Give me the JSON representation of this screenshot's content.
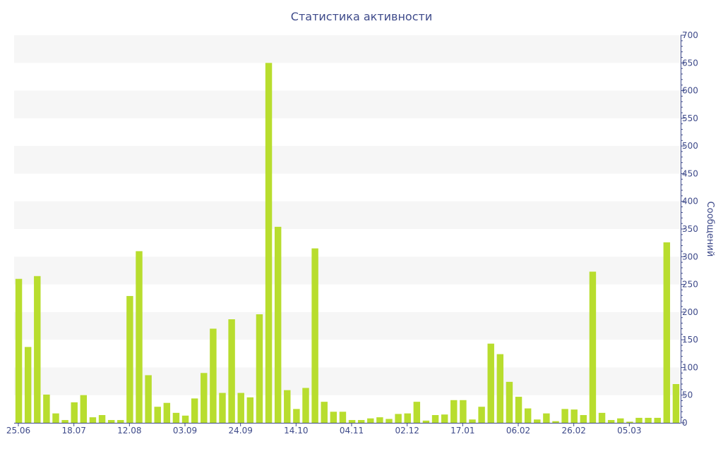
{
  "chart_data": {
    "type": "bar",
    "title": "Статистика активности",
    "ylabel": "Сообщений",
    "xlabel": "",
    "ylim": [
      0,
      700
    ],
    "y_ticks": [
      0,
      50,
      100,
      150,
      200,
      250,
      300,
      350,
      400,
      450,
      500,
      550,
      600,
      650,
      700
    ],
    "y_axis_side": "right",
    "x_tick_labels": [
      {
        "label": "25.06",
        "index": 0
      },
      {
        "label": "18.07",
        "index": 6
      },
      {
        "label": "12.08",
        "index": 12
      },
      {
        "label": "03.09",
        "index": 18
      },
      {
        "label": "24.09",
        "index": 24
      },
      {
        "label": "14.10",
        "index": 30
      },
      {
        "label": "04.11",
        "index": 36
      },
      {
        "label": "02.12",
        "index": 42
      },
      {
        "label": "17.01",
        "index": 48
      },
      {
        "label": "06.02",
        "index": 54
      },
      {
        "label": "26.02",
        "index": 60
      },
      {
        "label": "05.03",
        "index": 66
      }
    ],
    "values": [
      260,
      137,
      265,
      51,
      17,
      5,
      37,
      50,
      10,
      14,
      5,
      5,
      229,
      310,
      86,
      29,
      36,
      18,
      13,
      44,
      90,
      170,
      54,
      187,
      54,
      46,
      196,
      650,
      354,
      59,
      25,
      63,
      315,
      38,
      20,
      20,
      5,
      5,
      8,
      10,
      7,
      16,
      17,
      38,
      4,
      14,
      15,
      41,
      41,
      6,
      29,
      143,
      124,
      74,
      47,
      26,
      6,
      17,
      3,
      25,
      24,
      14,
      273,
      18,
      5,
      8,
      2,
      9,
      9,
      9,
      326,
      70
    ],
    "bar_color": "#b8dd2e",
    "band_color": "#f6f6f6",
    "grid": "alternating horizontal bands"
  }
}
